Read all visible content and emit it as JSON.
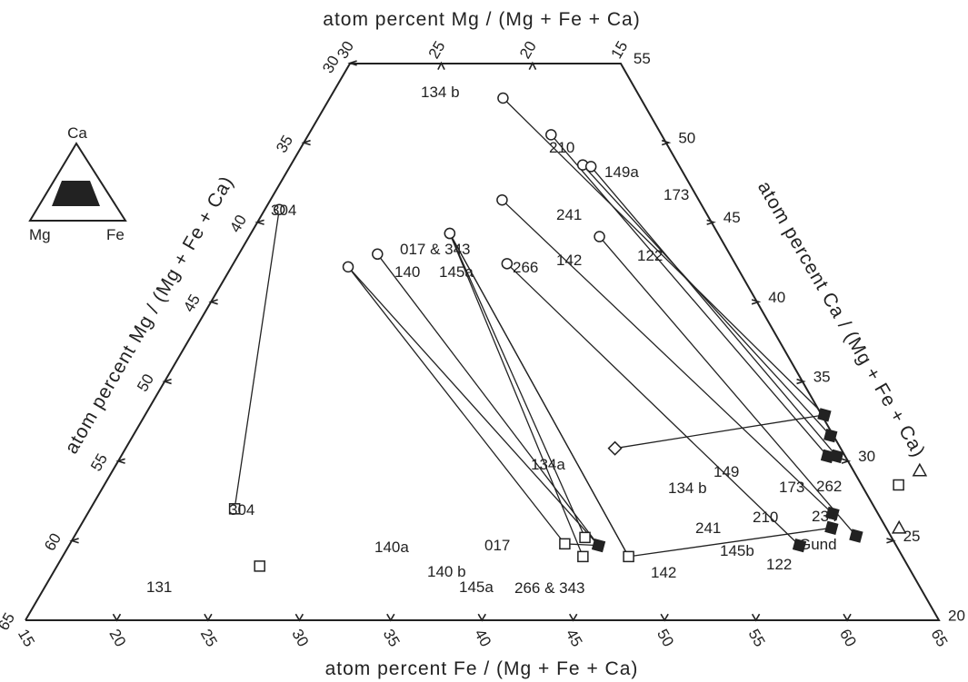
{
  "titles": {
    "top": "atom   percent   Mg / (Mg + Fe + Ca)",
    "left": "atom   percent   Mg / (Mg + Fe + Ca)",
    "right": "atom   percent   Ca / (Mg + Fe + Ca)",
    "bottom": "atom   percent   Fe / (Mg + Fe + Ca)"
  },
  "ticks": {
    "bottom": [
      "15",
      "20",
      "25",
      "30",
      "35",
      "40",
      "45",
      "50",
      "55",
      "60",
      "65"
    ],
    "left": [
      "65",
      "60",
      "55",
      "50",
      "45",
      "40",
      "35",
      "30"
    ],
    "top": [
      "30",
      "25",
      "20",
      "15"
    ],
    "right": [
      "55",
      "50",
      "45",
      "40",
      "35",
      "30",
      "25",
      "20"
    ]
  },
  "inset": {
    "apex": "Ca",
    "left": "Mg",
    "right": "Fe"
  },
  "colors": {
    "ink": "#222222",
    "background": "#ffffff"
  },
  "chart_data": {
    "type": "scatter",
    "title": "",
    "xlabel": "atom percent Fe / (Mg + Fe + Ca)",
    "ylabel": "atom percent Ca / (Mg + Fe + Ca)",
    "extra_label": "atom percent Mg / (Mg + Fe + Ca)",
    "xlim": [
      15,
      65
    ],
    "ylim": [
      20,
      55
    ],
    "legend": "none",
    "points": [
      {
        "label": "134 b",
        "fe": 24.5,
        "ca": 52.8,
        "marker": "open-circle"
      },
      {
        "label": "210",
        "fe": 28.3,
        "ca": 50.5,
        "marker": "open-circle"
      },
      {
        "label": "149a",
        "fe": 31.0,
        "ca": 48.6,
        "marker": "open-circle"
      },
      {
        "label": "173",
        "fe": 31.5,
        "ca": 48.5,
        "marker": "open-circle"
      },
      {
        "label": "241",
        "fe": 27.7,
        "ca": 46.4,
        "marker": "open-circle"
      },
      {
        "label": "122",
        "fe": 34.2,
        "ca": 44.1,
        "marker": "open-circle"
      },
      {
        "label": "304",
        "fe": 15.8,
        "ca": 45.8,
        "marker": "open-circle"
      },
      {
        "label": "017 & 343",
        "fe": 25.9,
        "ca": 44.3,
        "marker": "open-circle"
      },
      {
        "label": "266",
        "fe": 25.9,
        "ca": 44.3,
        "marker": "open-circle"
      },
      {
        "label": "145a",
        "fe": 22.6,
        "ca": 43.0,
        "marker": "open-circle"
      },
      {
        "label": "140",
        "fe": 21.4,
        "ca": 42.2,
        "marker": "open-circle"
      },
      {
        "label": "142",
        "fe": 30.0,
        "ca": 42.4,
        "marker": "open-circle"
      },
      {
        "label": "304",
        "fe": 22.9,
        "ca": 27.0,
        "marker": "open-square"
      },
      {
        "label": "131",
        "fe": 26.1,
        "ca": 23.4,
        "marker": "open-square"
      },
      {
        "label": "140a",
        "fe": 42.1,
        "ca": 24.8,
        "marker": "open-square"
      },
      {
        "label": "017",
        "fe": 43.0,
        "ca": 25.2,
        "marker": "open-square"
      },
      {
        "label": "145a",
        "fe": 43.5,
        "ca": 24.0,
        "marker": "open-square"
      },
      {
        "label": "266 & 343",
        "fe": 46.0,
        "ca": 24.0,
        "marker": "open-square"
      },
      {
        "label": "234",
        "fe": 58.5,
        "ca": 28.5,
        "marker": "open-square"
      },
      {
        "label": "134a",
        "fe": 41.8,
        "ca": 30.8,
        "marker": "open-diamond"
      },
      {
        "label": "140 b",
        "fe": 44.0,
        "ca": 24.7,
        "marker": "filled-square"
      },
      {
        "label": "134 b",
        "fe": 52.2,
        "ca": 32.9,
        "marker": "filled-square"
      },
      {
        "label": "149",
        "fe": 53.2,
        "ca": 31.6,
        "marker": "filled-square"
      },
      {
        "label": "210",
        "fe": 53.7,
        "ca": 30.3,
        "marker": "filled-square"
      },
      {
        "label": "173",
        "fe": 54.2,
        "ca": 30.3,
        "marker": "filled-square"
      },
      {
        "label": "241",
        "fe": 55.8,
        "ca": 26.7,
        "marker": "filled-square"
      },
      {
        "label": "145b",
        "fe": 56.2,
        "ca": 25.8,
        "marker": "filled-square"
      },
      {
        "label": "142",
        "fe": 55.0,
        "ca": 24.7,
        "marker": "filled-square"
      },
      {
        "label": "122",
        "fe": 57.8,
        "ca": 25.3,
        "marker": "filled-square"
      },
      {
        "label": "262",
        "fe": 59.2,
        "ca": 29.4,
        "marker": "open-triangle"
      },
      {
        "label": "Gund",
        "fe": 59.9,
        "ca": 25.8,
        "marker": "open-triangle"
      }
    ],
    "tie_lines": [
      {
        "from": "304 (circle)",
        "to": "304 (square)"
      },
      {
        "from": "140 (circle)",
        "to": "140a (square)"
      },
      {
        "from": "140 (circle)",
        "to": "140 b (filled)"
      },
      {
        "from": "145a (circle)",
        "to": "140 b (filled)"
      },
      {
        "from": "017 & 343 (circle)",
        "to": "017 (square)"
      },
      {
        "from": "017 & 343 (circle)",
        "to": "145a (square)"
      },
      {
        "from": "017 & 343 (circle)",
        "to": "266 & 343 (square)"
      },
      {
        "from": "266 (circle)",
        "to": "266 & 343 (square)"
      },
      {
        "from": "134 b (circle)",
        "to": "134 b (filled)"
      },
      {
        "from": "134a (diamond)",
        "to": "134 b (filled)"
      },
      {
        "from": "241 (circle)",
        "to": "241 (filled)"
      },
      {
        "from": "142 (circle)",
        "to": "142 (filled)"
      },
      {
        "from": "210 (circle)",
        "to": "210 (filled)"
      },
      {
        "from": "149a (circle)",
        "to": "149 (filled)"
      },
      {
        "from": "173 (circle)",
        "to": "173 (filled)"
      },
      {
        "from": "122 (circle)",
        "to": "122 (filled)"
      },
      {
        "from": "140a (square)",
        "to": "140 b (filled)"
      },
      {
        "from": "266 & 343 (square)",
        "to": "145b (filled)"
      }
    ]
  }
}
